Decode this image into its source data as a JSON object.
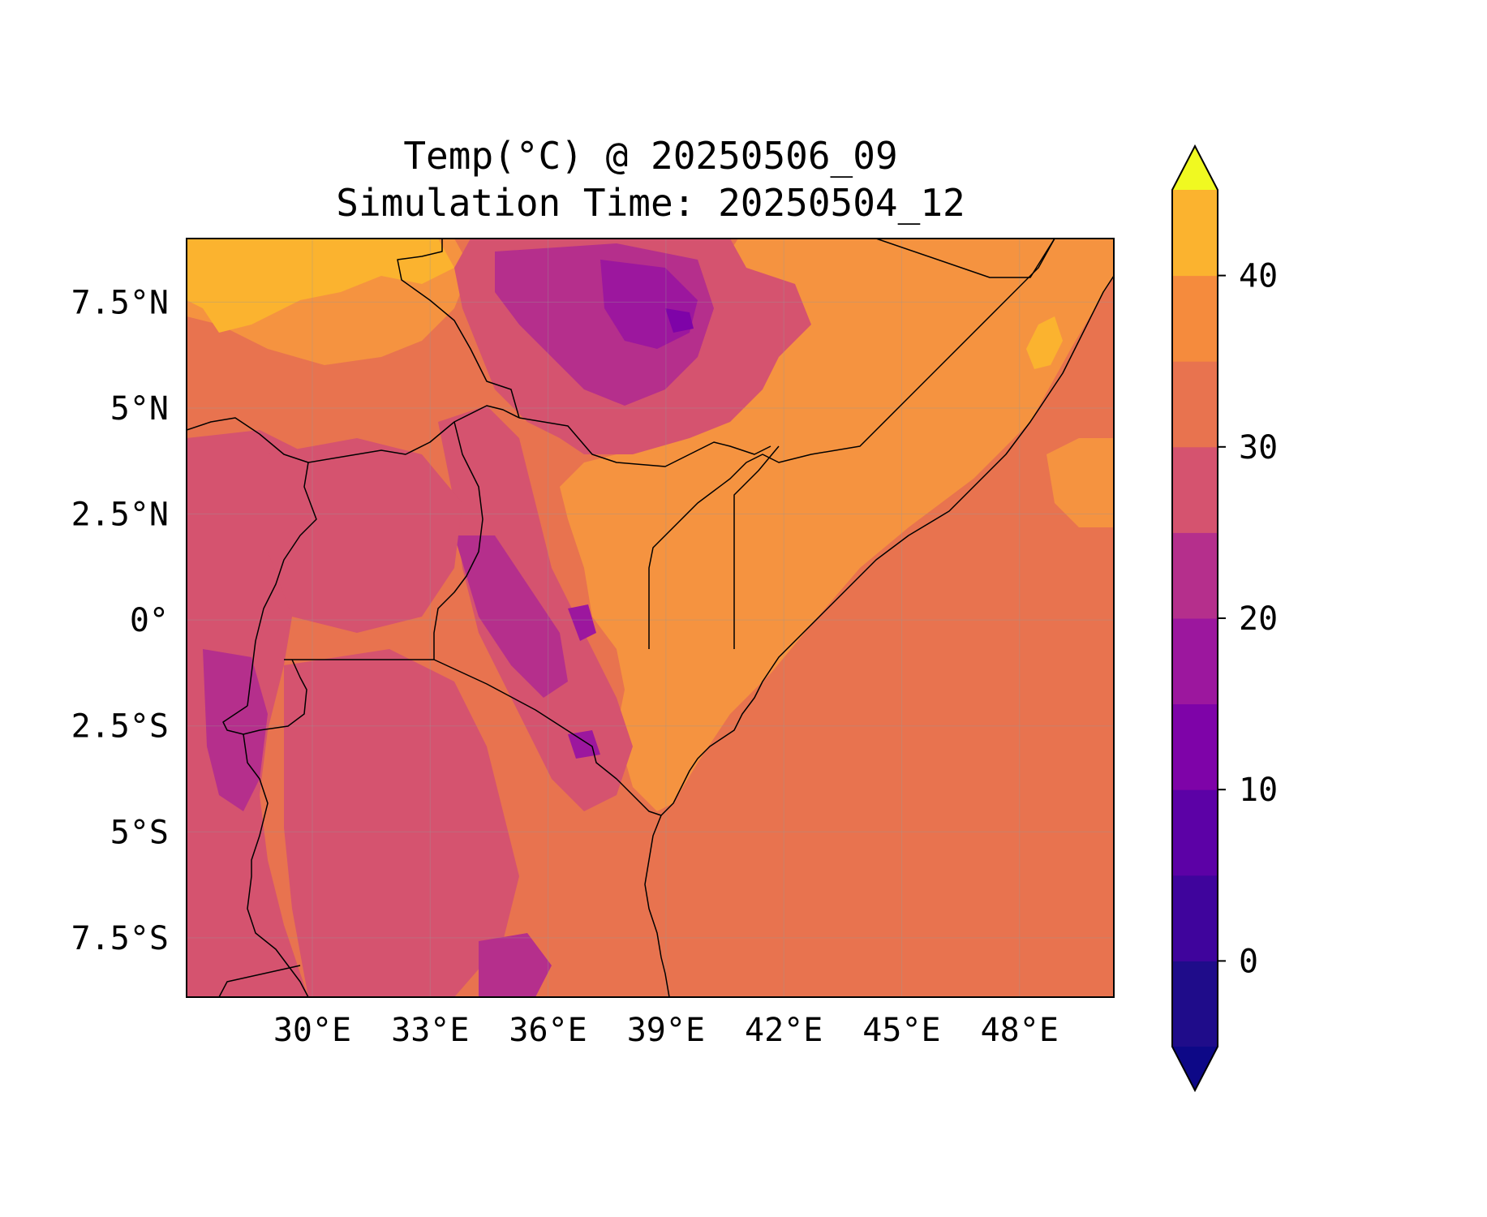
{
  "title_line1": "Temp(°C) @ 20250506_09",
  "title_line2": "Simulation Time: 20250504_12",
  "map": {
    "lon_range": [
      26.8,
      50.4
    ],
    "lat_range": [
      -8.9,
      9.0
    ],
    "x_ticks": [
      {
        "lon": 30,
        "label": "30°E"
      },
      {
        "lon": 33,
        "label": "33°E"
      },
      {
        "lon": 36,
        "label": "36°E"
      },
      {
        "lon": 39,
        "label": "39°E"
      },
      {
        "lon": 42,
        "label": "42°E"
      },
      {
        "lon": 45,
        "label": "45°E"
      },
      {
        "lon": 48,
        "label": "48°E"
      }
    ],
    "y_ticks": [
      {
        "lat": 7.5,
        "label": "7.5°N"
      },
      {
        "lat": 5,
        "label": "5°N"
      },
      {
        "lat": 2.5,
        "label": "2.5°N"
      },
      {
        "lat": 0,
        "label": "0°"
      },
      {
        "lat": -2.5,
        "label": "2.5°S"
      },
      {
        "lat": -5,
        "label": "5°S"
      },
      {
        "lat": -7.5,
        "label": "7.5°S"
      }
    ],
    "gridlines": true
  },
  "colorbar": {
    "range": [
      -5,
      45
    ],
    "levels": [
      -5,
      0,
      5,
      10,
      15,
      20,
      25,
      30,
      35,
      40,
      45
    ],
    "extend": "both",
    "colors": [
      "#1f0c8a",
      "#3f049c",
      "#5c01a6",
      "#7e03a8",
      "#9c179e",
      "#b52f8c",
      "#d5536f",
      "#e8734f",
      "#f58b3d",
      "#fbb32f",
      "#f0f921"
    ],
    "under_color": "#0d0887",
    "over_color": "#f0f921",
    "tick_labels": [
      {
        "value": 0,
        "label": "0"
      },
      {
        "value": 10,
        "label": "10"
      },
      {
        "value": 20,
        "label": "20"
      },
      {
        "value": 30,
        "label": "30"
      },
      {
        "value": 40,
        "label": "40"
      }
    ]
  },
  "field_colors": {
    "ocean": "#e8734f",
    "hot": "#f59340",
    "hottest": "#fbb32f",
    "warm": "#d5536f",
    "cool": "#b52f8c",
    "cold": "#9c179e",
    "coldest": "#7e03a8"
  }
}
